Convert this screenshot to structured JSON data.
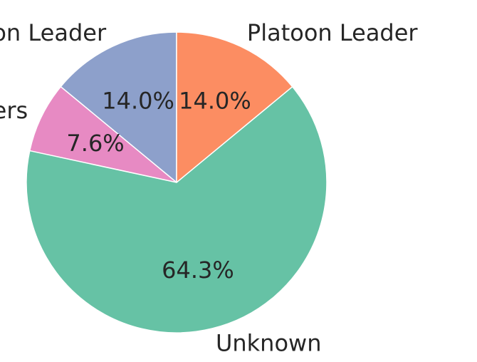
{
  "chart_data": {
    "type": "pie",
    "title": "",
    "start_angle_deg": 90,
    "direction": "counterclockwise",
    "slices": [
      {
        "label": "Deputy Platoon Leader",
        "value": 14.0,
        "pct_text": "14.0%",
        "color": "#8da0cb"
      },
      {
        "label": "Others",
        "value": 7.6,
        "pct_text": "7.6%",
        "color": "#e78ac3"
      },
      {
        "label": "Unknown",
        "value": 64.3,
        "pct_text": "64.3%",
        "color": "#66c2a5"
      },
      {
        "label": "Platoon Leader",
        "value": 14.0,
        "pct_text": "14.0%",
        "color": "#fc8d62"
      }
    ]
  }
}
